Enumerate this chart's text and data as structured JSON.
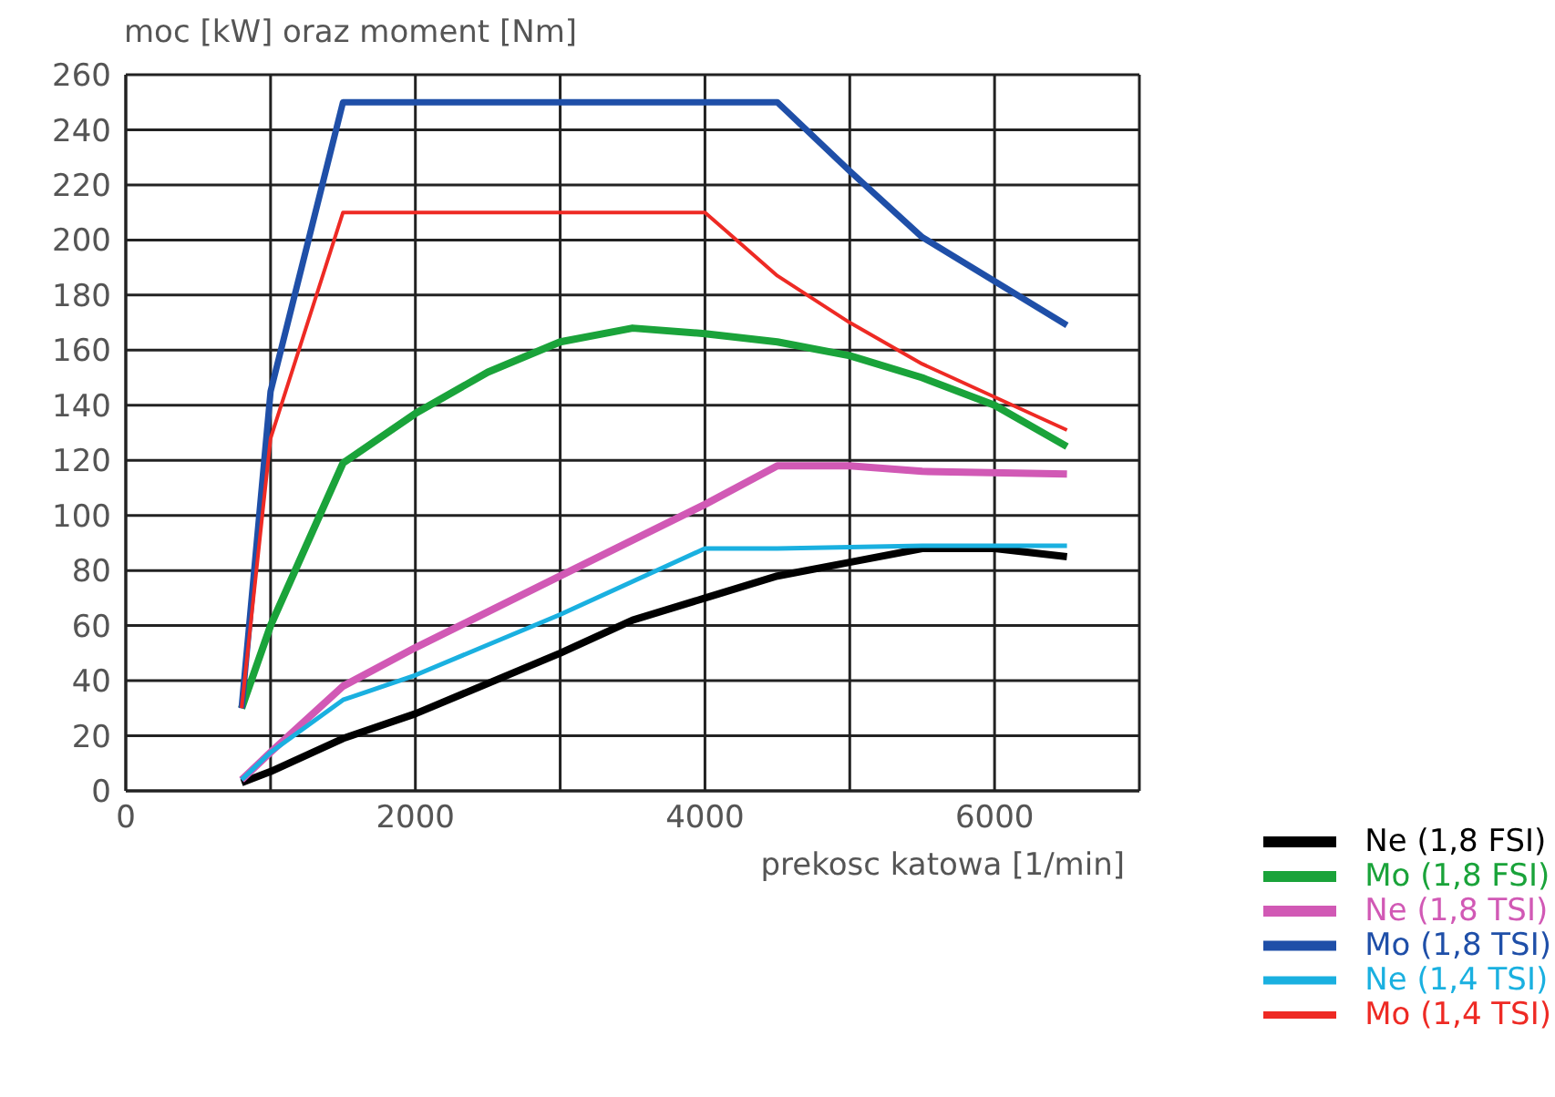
{
  "chart_data": {
    "type": "line",
    "ylabel": "moc [kW] oraz moment [Nm]",
    "xlabel": "prekosc katowa [1/min]",
    "xlim": [
      0,
      7000
    ],
    "xticks": [
      0,
      {
        "value": 1000,
        "label": null
      },
      2000,
      {
        "value": 3000,
        "label": null
      },
      4000,
      {
        "value": 5000,
        "label": null
      },
      6000,
      {
        "value": 7000,
        "label": null
      }
    ],
    "ylim": [
      0,
      260
    ],
    "yticks": [
      0,
      20,
      40,
      60,
      80,
      100,
      120,
      140,
      160,
      180,
      200,
      220,
      240,
      260
    ],
    "grid": true,
    "legend": "bottom right",
    "marker": "none",
    "line_style": "solid",
    "series": [
      {
        "name": "Ne (1,8 FSI)",
        "color": "#000000",
        "x": [
          800,
          1000,
          1500,
          2000,
          3000,
          3500,
          4000,
          4500,
          5000,
          5500,
          6000,
          6500
        ],
        "values": [
          3,
          7,
          19,
          28,
          50,
          62,
          70,
          78,
          83,
          88,
          88,
          85
        ]
      },
      {
        "name": "Mo (1,8 FSI)",
        "color": "#1aa33a",
        "x": [
          800,
          1000,
          1500,
          2000,
          2500,
          3000,
          3500,
          4000,
          4500,
          5000,
          5500,
          6000,
          6500
        ],
        "values": [
          30,
          60,
          119,
          137,
          152,
          163,
          168,
          166,
          163,
          158,
          150,
          140,
          125
        ]
      },
      {
        "name": "Ne (1,8 TSI)",
        "color": "#d159b5",
        "x": [
          800,
          1000,
          1500,
          2000,
          3000,
          4000,
          4500,
          5000,
          5500,
          6500
        ],
        "values": [
          4,
          14,
          38,
          52,
          78,
          104,
          118,
          118,
          116,
          115
        ]
      },
      {
        "name": "Mo (1,8 TSI)",
        "color": "#1f4fa8",
        "x": [
          800,
          1000,
          1500,
          4500,
          5000,
          5500,
          6500
        ],
        "values": [
          30,
          145,
          250,
          250,
          225,
          201,
          169
        ]
      },
      {
        "name": "Ne (1,4 TSI)",
        "color": "#1ab0e0",
        "x": [
          800,
          1000,
          1500,
          2000,
          3000,
          4000,
          4500,
          5500,
          6500
        ],
        "values": [
          4,
          14,
          33,
          42,
          64,
          88,
          88,
          89,
          89
        ]
      },
      {
        "name": "Mo (1,4 TSI)",
        "color": "#ee2a24",
        "x": [
          800,
          1000,
          1500,
          4000,
          4500,
          5000,
          5500,
          6000,
          6500
        ],
        "values": [
          30,
          128,
          210,
          210,
          187,
          170,
          155,
          143,
          131
        ]
      }
    ]
  }
}
